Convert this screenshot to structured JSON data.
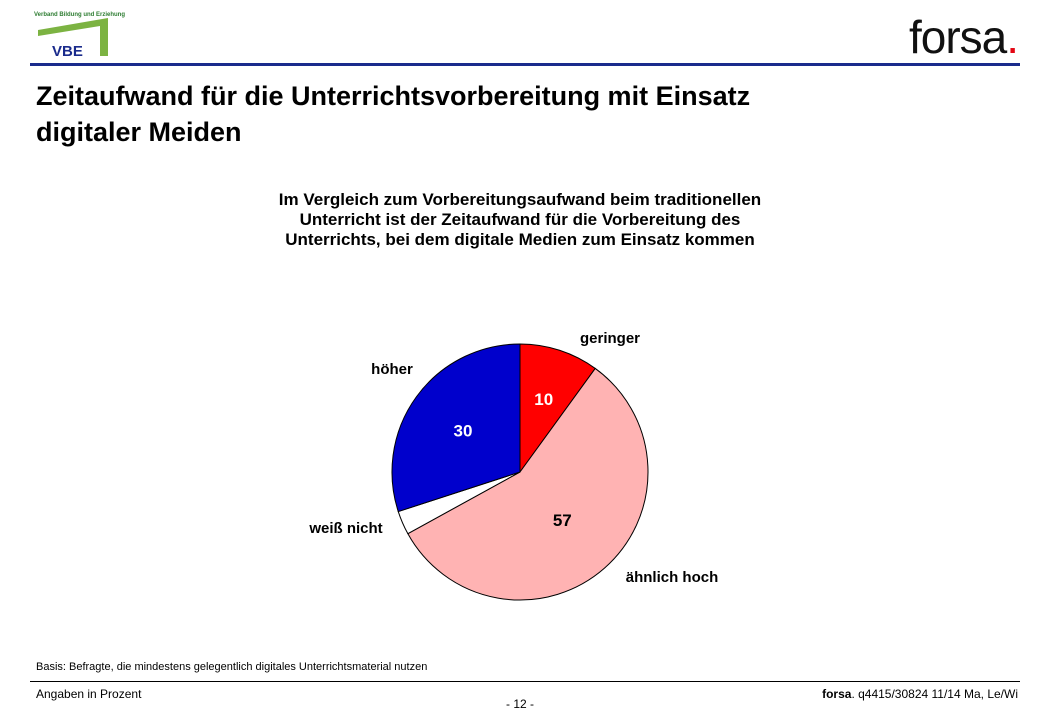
{
  "header": {
    "vbe_tagline": "Verband Bildung und Erziehung",
    "vbe_logo_text": "VBE",
    "forsa_logo_text": "forsa",
    "forsa_logo_dot": "."
  },
  "title": "Zeitaufwand für die Unterrichtsvorbereitung mit Einsatz digitaler Meiden",
  "chart_data": {
    "type": "pie",
    "subtitle_lines": [
      "Im Vergleich zum Vorbereitungsaufwand beim traditionellen",
      "Unterricht ist der Zeitaufwand für die Vorbereitung des",
      "Unterrichts, bei dem digitale Medien zum Einsatz kommen"
    ],
    "slices": [
      {
        "label": "geringer",
        "value": 10,
        "value_label": "10",
        "color": "#ff0000",
        "value_color": "#ffffff"
      },
      {
        "label": "ähnlich hoch",
        "value": 57,
        "value_label": "57",
        "color": "#ffb3b3",
        "value_color": "#000000"
      },
      {
        "label": "weiß nicht",
        "value": 3,
        "value_label": "",
        "color": "#ffffff",
        "value_color": "#000000"
      },
      {
        "label": "höher",
        "value": 30,
        "value_label": "30",
        "color": "#0000cc",
        "value_color": "#ffffff"
      }
    ]
  },
  "footer": {
    "basis": "Basis: Befragte, die mindestens gelegentlich digitales Unterrichtsmaterial nutzen",
    "left": "Angaben in Prozent",
    "page": "- 12 -",
    "right_brand": "forsa",
    "right_text": ". q4415/30824 11/14 Ma, Le/Wi"
  }
}
